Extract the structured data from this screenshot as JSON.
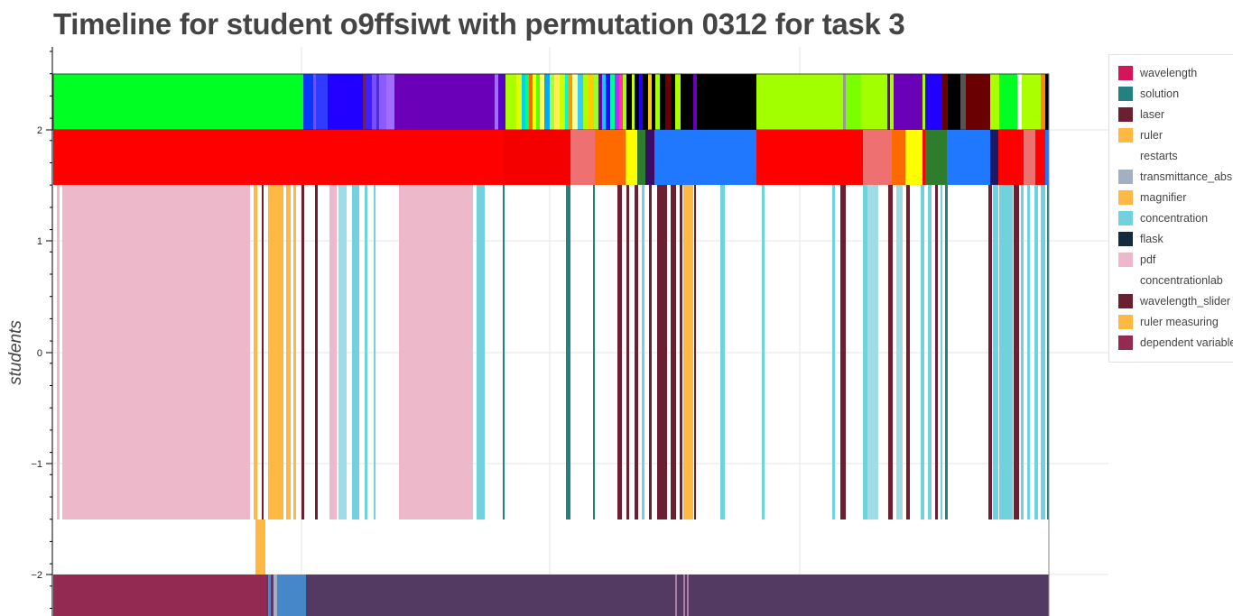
{
  "chart_data": {
    "type": "timeline",
    "title": "Timeline for student o9ffsiwt with permutation 0312 for task 3",
    "ylabel": "students",
    "y_ticks": [
      "2",
      "1",
      "0",
      "−1",
      "−2"
    ],
    "ylim": [
      -2.4,
      2.75
    ],
    "grid": true,
    "legend_position": "right",
    "legend": [
      {
        "label": "wavelength",
        "color": "#d5155a"
      },
      {
        "label": "solution",
        "color": "#258080"
      },
      {
        "label": "laser",
        "color": "#6d1f32"
      },
      {
        "label": "ruler",
        "color": "#ffb841"
      },
      {
        "label": "restarts",
        "color": "#ffffff"
      },
      {
        "label": "transmittance_abs",
        "color": "#a3b0c2"
      },
      {
        "label": "magnifier",
        "color": "#ffb841"
      },
      {
        "label": "concentration",
        "color": "#71d1dd"
      },
      {
        "label": "flask",
        "color": "#162a3e"
      },
      {
        "label": "pdf",
        "color": "#eeb8cb"
      },
      {
        "label": "concentrationlab",
        "color": "#ffffff"
      },
      {
        "label": "wavelength_slider",
        "color": "#6d1f32"
      },
      {
        "label": "ruler measuring",
        "color": "#ffb841"
      },
      {
        "label": "dependent variable",
        "color": "#932a52"
      }
    ]
  }
}
